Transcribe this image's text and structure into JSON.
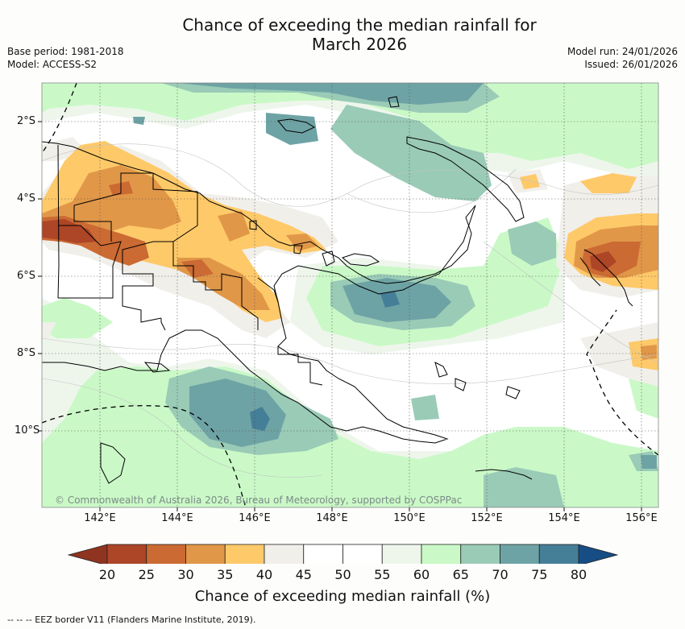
{
  "title": {
    "line1": "Chance of exceeding the median rainfall for",
    "line2": "March 2026"
  },
  "meta": {
    "base_period": "Base period: 1981-2018",
    "model": "Model: ACCESS-S2",
    "model_run": "Model run: 24/01/2026",
    "issued": "Issued: 26/01/2026"
  },
  "map": {
    "lat_labels": [
      "2°S",
      "4°S",
      "6°S",
      "8°S",
      "10°S"
    ],
    "lon_labels": [
      "142°E",
      "144°E",
      "146°E",
      "148°E",
      "150°E",
      "152°E",
      "154°E",
      "156°E"
    ],
    "copyright": "© Commonwealth of Australia 2026, Bureau of Meteorology, supported by COSPPac"
  },
  "colorbar": {
    "ticks": [
      "20",
      "25",
      "30",
      "35",
      "40",
      "45",
      "50",
      "55",
      "60",
      "65",
      "70",
      "75",
      "80"
    ],
    "colors": [
      "#ad4527",
      "#cb6a33",
      "#e19748",
      "#fec969",
      "#f1efea",
      "#ffffff",
      "#ffffff",
      "#eef6ec",
      "#caf9c7",
      "#9acbb7",
      "#6ea3a5",
      "#457e97"
    ],
    "low_extend_color": "#8e3420",
    "high_extend_color": "#174d85",
    "label": "Chance of exceeding median rainfall (%)"
  },
  "legend": {
    "eez": "--  --  -- EEZ border V11 (Flanders Marine Institute, 2019)."
  }
}
